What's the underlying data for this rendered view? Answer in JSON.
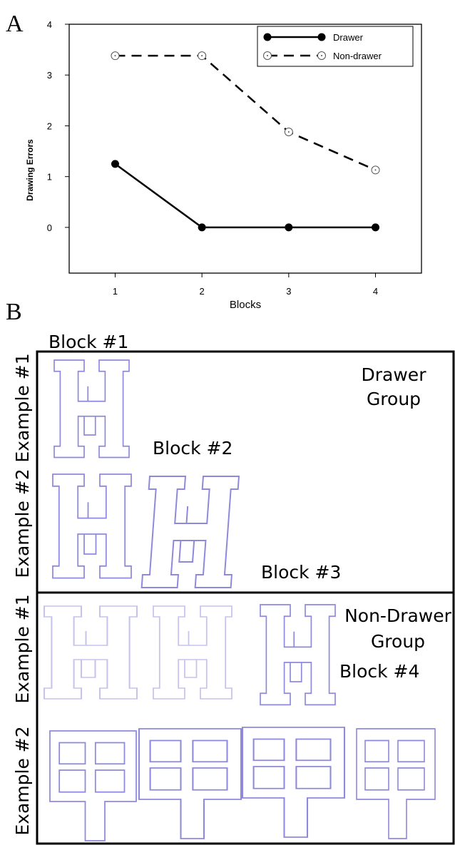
{
  "chart_data": {
    "type": "line",
    "x": [
      1,
      2,
      3,
      4
    ],
    "series": [
      {
        "name": "Drawer",
        "color": "#000000",
        "values": [
          1.25,
          0,
          0,
          0
        ]
      },
      {
        "name": "Non-drawer",
        "color": "#000000",
        "values": [
          3.38,
          3.38,
          1.88,
          1.13
        ]
      }
    ],
    "xlabel": "Blocks",
    "ylabel": "Drawing Errors",
    "xlim": [
      0.47,
      4.53
    ],
    "ylim": [
      -0.9,
      4
    ],
    "xticks": [
      1,
      2,
      3,
      4
    ],
    "yticks": [
      0,
      1,
      2,
      3,
      4
    ],
    "legend": "upper right"
  },
  "panels": {
    "a_label": "A",
    "b_label": "B"
  },
  "drawings": {
    "blocks": [
      "Block #1",
      "Block #2",
      "Block #3",
      "Block #4"
    ],
    "drawer_group": [
      "Drawer",
      "Group"
    ],
    "non_drawer_group": [
      "Non-Drawer",
      "Group"
    ],
    "examples": [
      "Example #1",
      "Example #2",
      "Example #1",
      "Example #2"
    ]
  }
}
